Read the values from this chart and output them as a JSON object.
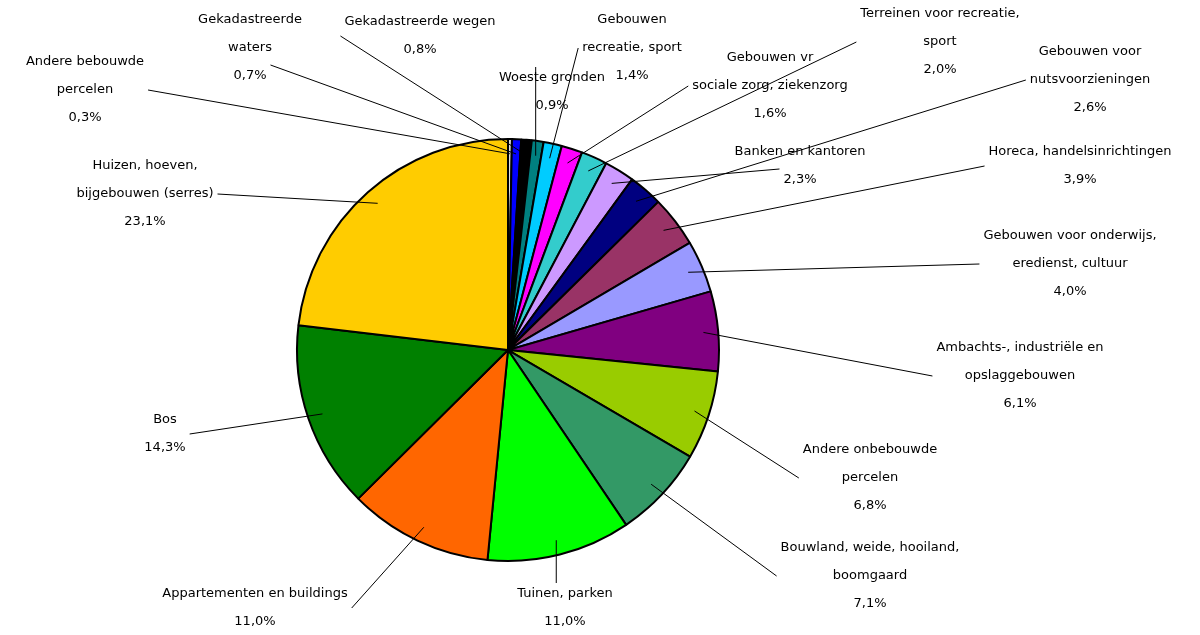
{
  "chart_data": {
    "type": "pie",
    "categories": [
      "Andere bebouwde percelen",
      "Gekadastreerde waters",
      "Gekadastreerde wegen",
      "Woeste gronden",
      "Gebouwen recreatie, sport",
      "Gebouwen vr sociale zorg, ziekenzorg",
      "Terreinen voor recreatie, sport",
      "Banken en kantoren",
      "Gebouwen voor nutsvoorzieningen",
      "Horeca, handelsinrichtingen",
      "Gebouwen voor onderwijs, eredienst, cultuur",
      "Ambachts-, industriële en opslaggebouwen",
      "Andere onbebouwde percelen",
      "Bouwland, weide, hooiland, boomgaard",
      "Tuinen, parken",
      "Appartementen en buildings",
      "Bos",
      "Huizen, hoeven, bijgebouwen (serres)"
    ],
    "values": [
      0.3,
      0.7,
      0.8,
      0.9,
      1.4,
      1.6,
      2.0,
      2.3,
      2.6,
      3.9,
      4.0,
      6.1,
      6.8,
      7.1,
      11.0,
      11.0,
      14.3,
      23.1
    ],
    "value_labels": [
      "0,3%",
      "0,7%",
      "0,8%",
      "0,9%",
      "1,4%",
      "1,6%",
      "2,0%",
      "2,3%",
      "2,6%",
      "3,9%",
      "4,0%",
      "6,1%",
      "6,8%",
      "7,1%",
      "11,0%",
      "11,0%",
      "14,3%",
      "23,1%"
    ],
    "colors": [
      "#e0e0e0",
      "#0000ff",
      "#000000",
      "#008080",
      "#00ccff",
      "#ff00ff",
      "#33cccc",
      "#cc99ff",
      "#000080",
      "#993366",
      "#9999ff",
      "#800080",
      "#99cc00",
      "#339966",
      "#00ff00",
      "#ff6600",
      "#008000",
      "#ffcc00"
    ],
    "legend": false
  }
}
